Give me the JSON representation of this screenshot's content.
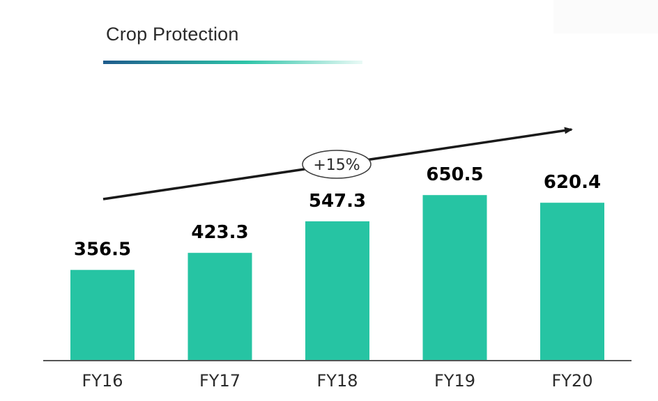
{
  "chart_data": {
    "type": "bar",
    "title": "Crop Protection",
    "categories": [
      "FY16",
      "FY17",
      "FY18",
      "FY19",
      "FY20"
    ],
    "values": [
      356.5,
      423.3,
      547.3,
      650.5,
      620.4
    ],
    "value_labels": [
      "356.5",
      "423.3",
      "547.3",
      "650.5",
      "620.4"
    ],
    "ylim": [
      0,
      700
    ],
    "grid": false,
    "annotation": "+15%",
    "colors": {
      "bar": "#26c4a3",
      "axis": "#555555",
      "arrow": "#1a1a1a",
      "underline_start": "#1e5b8c",
      "underline_mid": "#2ec4a8",
      "underline_end": "#eafaf6"
    }
  }
}
